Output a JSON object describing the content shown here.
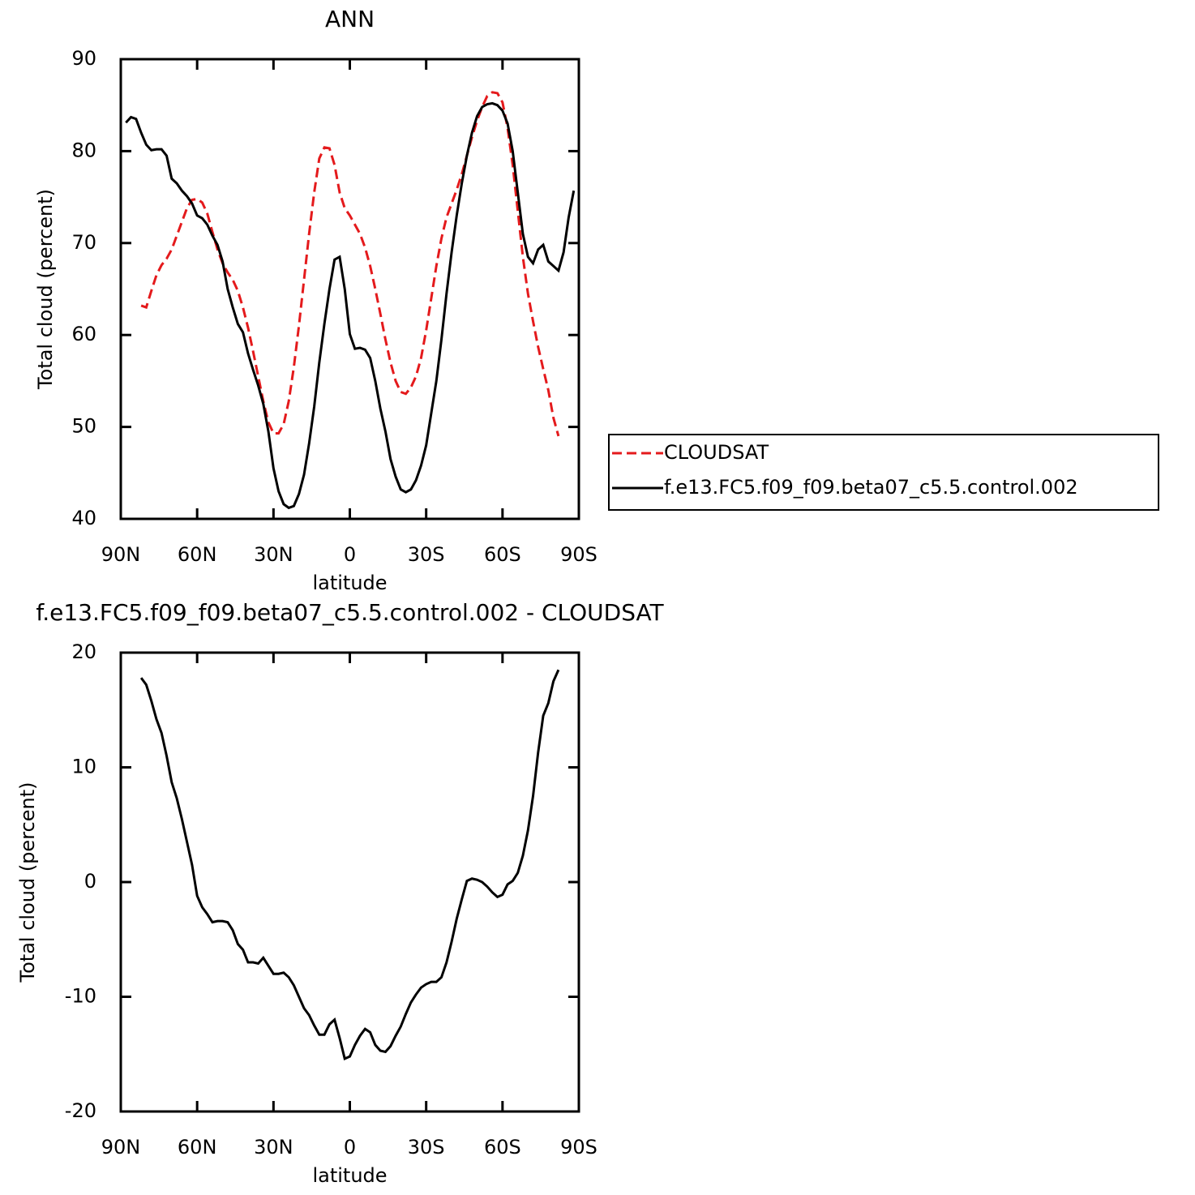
{
  "chart_data": [
    {
      "type": "line",
      "title": "ANN",
      "xlabel": "latitude",
      "ylabel": "Total cloud (percent)",
      "x": [
        88,
        86,
        84,
        82,
        80,
        78,
        76,
        74,
        72,
        70,
        68,
        66,
        64,
        62,
        60,
        58,
        56,
        54,
        52,
        50,
        48,
        46,
        44,
        42,
        40,
        38,
        36,
        34,
        32,
        30,
        28,
        26,
        24,
        22,
        20,
        18,
        16,
        14,
        12,
        10,
        8,
        6,
        4,
        2,
        0,
        -2,
        -4,
        -6,
        -8,
        -10,
        -12,
        -14,
        -16,
        -18,
        -20,
        -22,
        -24,
        -26,
        -28,
        -30,
        -32,
        -34,
        -36,
        -38,
        -40,
        -42,
        -44,
        -46,
        -48,
        -50,
        -52,
        -54,
        -56,
        -58,
        -60,
        -62,
        -64,
        -66,
        -68,
        -70,
        -72,
        -74,
        -76,
        -78,
        -80,
        -82,
        -84,
        -86,
        -88
      ],
      "series": [
        {
          "name": "CLOUDSAT",
          "color": "#e41a1c",
          "linestyle": "dashed",
          "values": [
            null,
            null,
            null,
            63.2,
            63,
            64.8,
            66.5,
            67.6,
            68.3,
            69.3,
            70.8,
            72.3,
            73.8,
            74.7,
            74.8,
            74.4,
            73.2,
            71.2,
            69.3,
            67.8,
            66.8,
            66,
            64.8,
            63,
            60.8,
            58.2,
            55.5,
            52.8,
            50.5,
            49.3,
            49.3,
            50.3,
            52.8,
            56.5,
            61,
            66,
            71,
            75.5,
            79.2,
            80.4,
            80.3,
            78.5,
            75.5,
            73.8,
            73,
            72,
            71,
            69.5,
            67.5,
            65,
            62.3,
            59.5,
            57,
            55,
            53.8,
            53.6,
            54.3,
            55.5,
            57.5,
            60.5,
            64,
            67.5,
            70.5,
            72.8,
            74.3,
            75.8,
            77.5,
            79.5,
            81.5,
            83.3,
            84.8,
            86,
            86.4,
            86.3,
            85.3,
            82.5,
            78.5,
            73.5,
            68.5,
            64.5,
            61.5,
            58.7,
            56.3,
            54,
            51,
            49,
            null,
            null,
            null
          ]
        },
        {
          "name": "f.e13.FC5.f09_f09.beta07_c5.5.control.002",
          "color": "#000000",
          "linestyle": "solid",
          "values": [
            83.1,
            83.7,
            83.5,
            82,
            80.7,
            80.1,
            80.2,
            80.2,
            79.5,
            77,
            76.5,
            75.7,
            75.1,
            74.3,
            73,
            72.7,
            72,
            70.8,
            69.8,
            68,
            65,
            63,
            61.2,
            60.3,
            58,
            56.2,
            54.5,
            52.5,
            49.5,
            45.5,
            43,
            41.6,
            41.2,
            41.4,
            42.7,
            44.8,
            48.2,
            52.2,
            57,
            61.2,
            65,
            68.2,
            68.5,
            65,
            60.1,
            58.5,
            58.6,
            58.4,
            57.5,
            55,
            52,
            49.5,
            46.5,
            44.6,
            43.2,
            42.9,
            43.2,
            44.2,
            45.8,
            48,
            51.5,
            55,
            59.5,
            64.5,
            69,
            73,
            76.5,
            79.5,
            82,
            83.8,
            84.8,
            85.1,
            85.2,
            85,
            84.4,
            83,
            80,
            75.5,
            71,
            68.5,
            67.8,
            69.3,
            69.8,
            68,
            67.5,
            67,
            69,
            72.8,
            75.7
          ]
        }
      ],
      "xlim": [
        90,
        -90
      ],
      "xticks": [
        {
          "value": 90,
          "label": "90N"
        },
        {
          "value": 60,
          "label": "60N"
        },
        {
          "value": 30,
          "label": "30N"
        },
        0,
        {
          "value": -30,
          "label": "30S"
        },
        {
          "value": -60,
          "label": "60S"
        },
        {
          "value": -90,
          "label": "90S"
        }
      ],
      "ylim": [
        40,
        90
      ],
      "yticks": [
        40,
        50,
        60,
        70,
        80,
        90
      ],
      "legend": "right"
    },
    {
      "type": "line",
      "title": "f.e13.FC5.f09_f09.beta07_c5.5.control.002 - CLOUDSAT",
      "xlabel": "latitude",
      "ylabel": "Total cloud (percent)",
      "x": [
        82,
        80,
        78,
        76,
        74,
        72,
        70,
        68,
        66,
        64,
        62,
        60,
        58,
        56,
        54,
        52,
        50,
        48,
        46,
        44,
        42,
        40,
        38,
        36,
        34,
        32,
        30,
        28,
        26,
        24,
        22,
        20,
        18,
        16,
        14,
        12,
        10,
        8,
        6,
        4,
        2,
        0,
        -2,
        -4,
        -6,
        -8,
        -10,
        -12,
        -14,
        -16,
        -18,
        -20,
        -22,
        -24,
        -26,
        -28,
        -30,
        -32,
        -34,
        -36,
        -38,
        -40,
        -42,
        -44,
        -46,
        -48,
        -50,
        -52,
        -54,
        -56,
        -58,
        -60,
        -62,
        -64,
        -66,
        -68,
        -70,
        -72,
        -74,
        -76,
        -78,
        -80,
        -82
      ],
      "color": "#000000",
      "values": [
        17.8,
        17.2,
        15.8,
        14.2,
        13,
        11,
        8.7,
        7.3,
        5.5,
        3.5,
        1.5,
        -1.2,
        -2.2,
        -2.8,
        -3.5,
        -3.4,
        -3.4,
        -3.5,
        -4.2,
        -5.4,
        -5.9,
        -7,
        -7,
        -7.1,
        -6.6,
        -7.3,
        -8,
        -8,
        -7.9,
        -8.3,
        -9,
        -10,
        -11,
        -11.6,
        -12.5,
        -13.3,
        -13.3,
        -12.4,
        -12,
        -13.6,
        -15.4,
        -15.2,
        -14.2,
        -13.4,
        -12.8,
        -13.1,
        -14.2,
        -14.7,
        -14.8,
        -14.3,
        -13.4,
        -12.6,
        -11.5,
        -10.5,
        -9.8,
        -9.2,
        -8.9,
        -8.7,
        -8.7,
        -8.3,
        -7,
        -5.2,
        -3.2,
        -1.5,
        0.1,
        0.3,
        0.2,
        0,
        -0.4,
        -0.9,
        -1.3,
        -1.1,
        -0.2,
        0.1,
        0.8,
        2.3,
        4.5,
        7.5,
        11.3,
        14.5,
        15.6,
        17.5,
        18.5
      ],
      "xlim": [
        90,
        -90
      ],
      "xticks": [
        {
          "value": 90,
          "label": "90N"
        },
        {
          "value": 60,
          "label": "60N"
        },
        {
          "value": 30,
          "label": "30N"
        },
        0,
        {
          "value": -30,
          "label": "30S"
        },
        {
          "value": -60,
          "label": "60S"
        },
        {
          "value": -90,
          "label": "90S"
        }
      ],
      "ylim": [
        -20,
        20
      ],
      "yticks": [
        -20,
        -10,
        0,
        10,
        20
      ]
    }
  ]
}
